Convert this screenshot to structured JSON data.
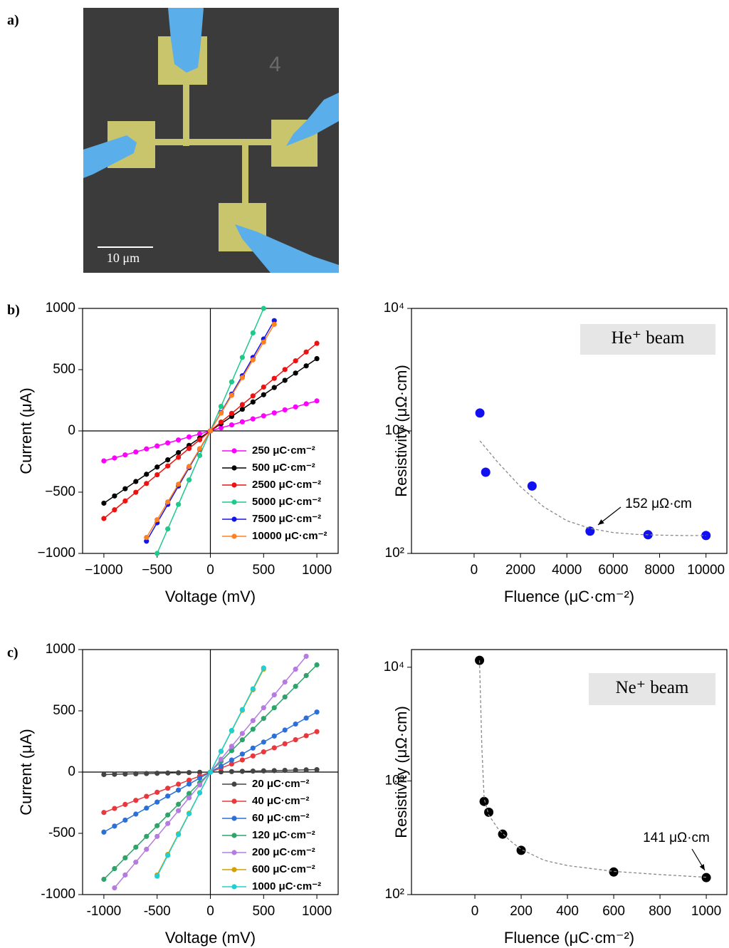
{
  "panel_labels": [
    "a)",
    "b)",
    "c)"
  ],
  "sem_image": {
    "scale_bar": "10 μm",
    "device_label": "4"
  },
  "chart_data": [
    {
      "type": "line",
      "xlabel": "Voltage (mV)",
      "ylabel": "Current (μA)",
      "x": [
        -1000,
        -900,
        -800,
        -700,
        -600,
        -500,
        -400,
        -300,
        -200,
        -100,
        0,
        100,
        200,
        300,
        400,
        500,
        600,
        700,
        800,
        900,
        1000
      ],
      "xlim": [
        -1200,
        1200
      ],
      "xticks": [
        {
          "value": -1000,
          "label": "−1000"
        },
        {
          "value": -500,
          "label": "−500"
        },
        0,
        500,
        1000
      ],
      "ylim": [
        -1000,
        1000
      ],
      "yticks": [
        {
          "value": -1000,
          "label": "−1000"
        },
        {
          "value": -500,
          "label": "−500"
        },
        0,
        500,
        1000
      ],
      "legend": "lower right",
      "series": [
        {
          "name": "250 μC·cm⁻²",
          "color": "#ff00ff",
          "values": [
            -245,
            -221,
            -196,
            -172,
            -147,
            -123,
            -98,
            -74,
            -49,
            -25,
            0,
            25,
            49,
            74,
            98,
            123,
            147,
            172,
            196,
            221,
            245
          ]
        },
        {
          "name": "500 μC·cm⁻²",
          "color": "#000000",
          "values": [
            -590,
            -531,
            -472,
            -413,
            -354,
            -295,
            -236,
            -177,
            -118,
            -59,
            0,
            59,
            118,
            177,
            236,
            295,
            354,
            413,
            472,
            531,
            590
          ]
        },
        {
          "name": "2500 μC·cm⁻²",
          "color": "#ee1111",
          "values": [
            -715,
            -644,
            -572,
            -501,
            -429,
            -358,
            -286,
            -215,
            -143,
            -72,
            0,
            72,
            143,
            215,
            286,
            358,
            429,
            501,
            572,
            644,
            715
          ]
        },
        {
          "name": "5000 μC·cm⁻²",
          "color": "#1fc98a",
          "values": [
            null,
            null,
            null,
            null,
            null,
            -1000,
            -800,
            -600,
            -400,
            -200,
            0,
            200,
            400,
            600,
            800,
            1000,
            null,
            null,
            null,
            null,
            null
          ]
        },
        {
          "name": "7500 μC·cm⁻²",
          "color": "#1515e6",
          "values": [
            null,
            null,
            null,
            null,
            -900,
            -750,
            -600,
            -450,
            -300,
            -150,
            0,
            150,
            300,
            450,
            600,
            750,
            900,
            null,
            null,
            null,
            null
          ]
        },
        {
          "name": "10000 μC·cm⁻²",
          "color": "#ff8020",
          "values": [
            null,
            null,
            null,
            null,
            -870,
            -725,
            -580,
            -435,
            -290,
            -145,
            0,
            145,
            290,
            435,
            580,
            725,
            870,
            null,
            null,
            null,
            null
          ]
        }
      ]
    },
    {
      "type": "scatter",
      "xlabel": "Fluence (μC·cm⁻²)",
      "ylabel": "Resistivity (μΩ·cm)",
      "log_y": true,
      "xlim": [
        -2700,
        10900
      ],
      "xticks": [
        0,
        2000,
        4000,
        6000,
        8000,
        10000
      ],
      "ylim": [
        100,
        10000
      ],
      "yticks": [
        {
          "value": 100,
          "label": "10²"
        },
        {
          "value": 1000,
          "label": "10³"
        },
        {
          "value": 10000,
          "label": "10⁴"
        }
      ],
      "badge": "He⁺ beam",
      "annotation": "152 μΩ·cm",
      "series": [
        {
          "color": "#1010f0",
          "x": [
            250,
            500,
            2500,
            5000,
            7500,
            10000
          ],
          "values": [
            1400,
            460,
            355,
            152,
            142,
            140
          ]
        },
        {
          "color": "#888888",
          "line_style": "dashed",
          "x": [
            250,
            1000,
            2000,
            3000,
            4000,
            5000,
            6000,
            7000,
            8000,
            9000,
            10000
          ],
          "values": [
            830,
            560,
            350,
            240,
            185,
            160,
            148,
            143,
            141,
            140,
            140
          ]
        }
      ]
    },
    {
      "type": "line",
      "xlabel": "Voltage (mV)",
      "ylabel": "Current (μA)",
      "x": [
        -1000,
        -900,
        -800,
        -700,
        -600,
        -500,
        -400,
        -300,
        -200,
        -100,
        0,
        100,
        200,
        300,
        400,
        500,
        600,
        700,
        800,
        900,
        1000
      ],
      "xlim": [
        -1200,
        1200
      ],
      "xticks": [
        -1000,
        -500,
        0,
        500,
        1000
      ],
      "ylim": [
        -1000,
        1000
      ],
      "yticks": [
        -1000,
        -500,
        0,
        500,
        1000
      ],
      "legend": "lower right",
      "series": [
        {
          "name": "20 μC·cm⁻²",
          "color": "#444444",
          "values": [
            -20,
            -18,
            -16,
            -14,
            -12,
            -10,
            -8,
            -6,
            -4,
            -2,
            0,
            2,
            4,
            6,
            8,
            10,
            12,
            14,
            16,
            18,
            20
          ]
        },
        {
          "name": "40 μC·cm⁻²",
          "color": "#e8383d",
          "values": [
            -330,
            -297,
            -264,
            -231,
            -198,
            -165,
            -132,
            -99,
            -66,
            -33,
            0,
            33,
            66,
            99,
            132,
            165,
            198,
            231,
            264,
            297,
            330
          ]
        },
        {
          "name": "60 μC·cm⁻²",
          "color": "#2a70d8",
          "values": [
            -490,
            -441,
            -392,
            -343,
            -294,
            -245,
            -196,
            -147,
            -98,
            -49,
            0,
            49,
            98,
            147,
            196,
            245,
            294,
            343,
            392,
            441,
            490
          ]
        },
        {
          "name": "120 μC·cm⁻²",
          "color": "#2ea46a",
          "values": [
            -875,
            -788,
            -700,
            -613,
            -525,
            -438,
            -350,
            -263,
            -175,
            -88,
            0,
            88,
            175,
            263,
            350,
            438,
            525,
            613,
            700,
            788,
            875
          ]
        },
        {
          "name": "200 μC·cm⁻²",
          "color": "#b57be0",
          "values": [
            null,
            -945,
            -840,
            -735,
            -630,
            -525,
            -420,
            -315,
            -210,
            -105,
            0,
            105,
            210,
            315,
            420,
            525,
            630,
            735,
            840,
            945,
            null
          ]
        },
        {
          "name": "600 μC·cm⁻²",
          "color": "#d4a000",
          "values": [
            null,
            null,
            null,
            null,
            null,
            -840,
            -672,
            -504,
            -336,
            -168,
            0,
            168,
            336,
            504,
            672,
            840,
            null,
            null,
            null,
            null,
            null
          ]
        },
        {
          "name": "1000 μC·cm⁻²",
          "color": "#20d0d0",
          "values": [
            null,
            null,
            null,
            null,
            null,
            -850,
            -680,
            -510,
            -340,
            -170,
            0,
            170,
            340,
            510,
            680,
            850,
            null,
            null,
            null,
            null,
            null
          ]
        }
      ]
    },
    {
      "type": "scatter",
      "xlabel": "Fluence (μC·cm⁻²)",
      "ylabel": "Resistivity (μΩ·cm)",
      "log_y": true,
      "xlim": [
        -274,
        1089
      ],
      "xticks": [
        0,
        200,
        400,
        600,
        800,
        1000
      ],
      "ylim": [
        100,
        14300
      ],
      "yticks": [
        {
          "value": 100,
          "label": "10²"
        },
        {
          "value": 1000,
          "label": "10³"
        },
        {
          "value": 10000,
          "label": "10⁴"
        }
      ],
      "badge": "Ne⁺ beam",
      "annotation": "141 μΩ·cm",
      "series": [
        {
          "color": "#000000",
          "x": [
            20,
            40,
            60,
            120,
            200,
            600,
            1000
          ],
          "values": [
            11500,
            660,
            530,
            340,
            245,
            158,
            141
          ]
        },
        {
          "color": "#888888",
          "line_style": "dashed",
          "x": [
            20,
            30,
            40,
            60,
            100,
            150,
            200,
            300,
            400,
            600,
            800,
            1000
          ],
          "values": [
            11500,
            2000,
            700,
            500,
            380,
            300,
            250,
            200,
            180,
            160,
            150,
            142
          ]
        }
      ]
    }
  ]
}
